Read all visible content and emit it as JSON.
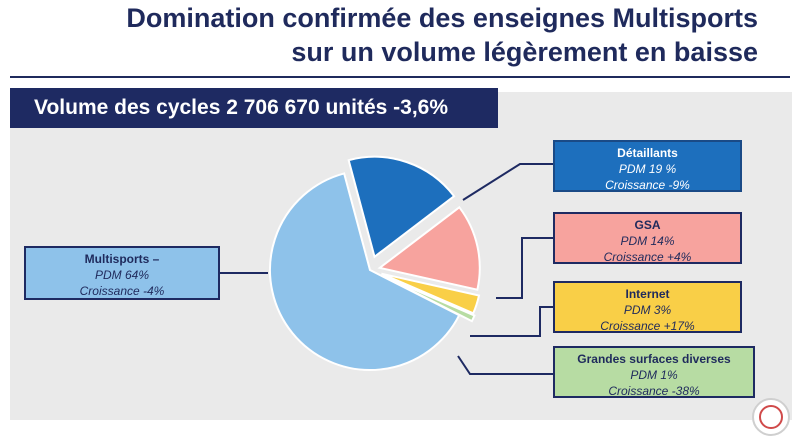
{
  "title": {
    "line1": "Domination confirmée des enseignes Multisports",
    "line2": "sur un volume légèrement en baisse"
  },
  "banner": "Volume des cycles 2 706 670 unités -3,6%",
  "chart_data": {
    "type": "pie",
    "slices": [
      {
        "name": "Multisports –",
        "share": 64,
        "share_label": "PDM 64%",
        "growth_label": "Croissance  -4%",
        "color": "#8ec2ea"
      },
      {
        "name": "Détaillants",
        "share": 19,
        "share_label": "PDM 19 %",
        "growth_label": "Croissance  -9%",
        "color": "#1d6fbd"
      },
      {
        "name": "GSA",
        "share": 14,
        "share_label": "PDM 14%",
        "growth_label": "Croissance  +4%",
        "color": "#f7a39e"
      },
      {
        "name": "Internet",
        "share": 3,
        "share_label": "PDM 3%",
        "growth_label": "Croissance  +17%",
        "color": "#f9cf47"
      },
      {
        "name": "Grandes surfaces diverses",
        "share": 1,
        "share_label": "PDM 1%",
        "growth_label": "Croissance  -38%",
        "color": "#b7dca3"
      }
    ]
  },
  "logo_icon": "circular-logo-icon"
}
